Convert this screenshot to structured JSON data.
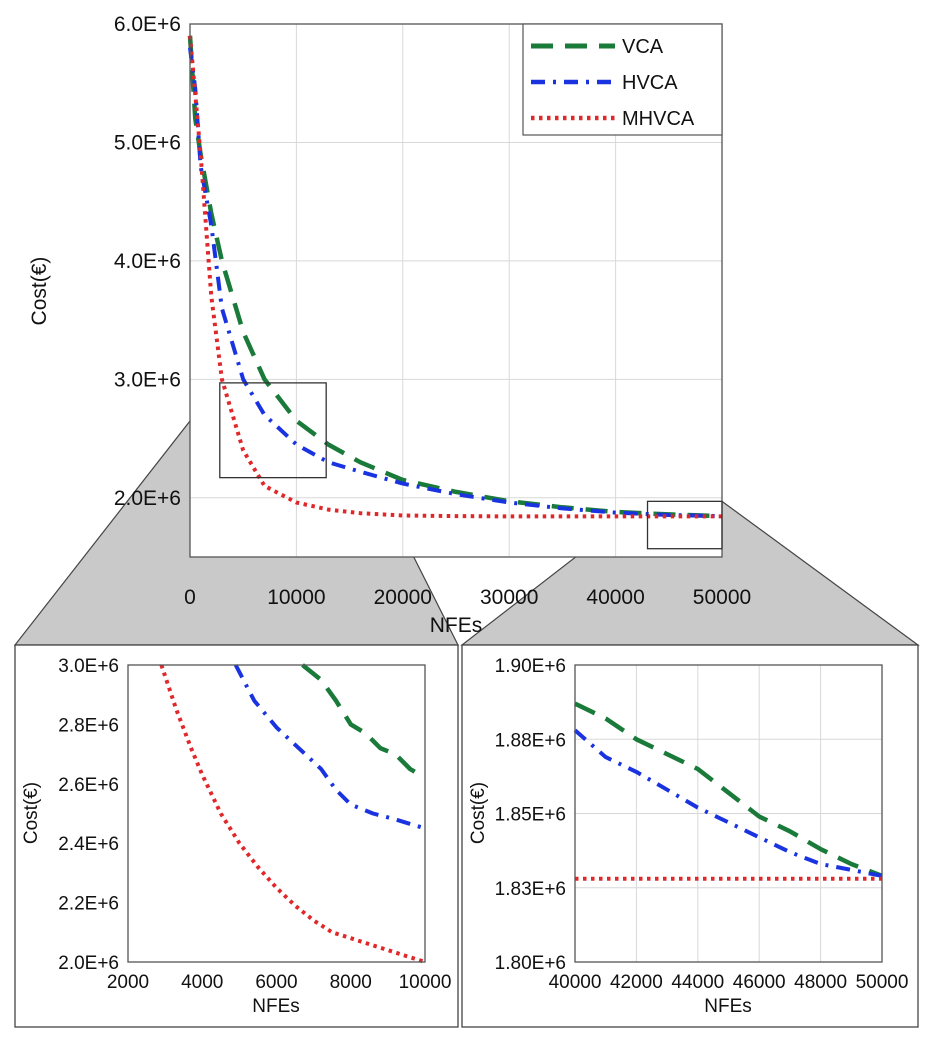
{
  "colors": {
    "vca": "#1a7a3a",
    "hvca": "#1a33e0",
    "mhvca": "#e0282a",
    "zoom_fill": "#c9c9c9",
    "grid": "#d8d8d8",
    "frame": "#555555"
  },
  "chart_data": [
    {
      "type": "line",
      "title": "",
      "xlabel": "NFEs",
      "ylabel": "Cost(€)",
      "xlim": [
        0,
        50000
      ],
      "ylim": [
        1500000,
        6000000
      ],
      "x_ticks": [
        0,
        10000,
        20000,
        30000,
        40000,
        50000
      ],
      "x_tick_labels": [
        "0",
        "10000",
        "20000",
        "30000",
        "40000",
        "50000"
      ],
      "y_ticks": [
        2000000,
        3000000,
        4000000,
        5000000,
        6000000
      ],
      "y_tick_labels": [
        "2.0E+6",
        "3.0E+6",
        "4.0E+6",
        "5.0E+6",
        "6.0E+6"
      ],
      "grid": true,
      "legend_position": "top-right",
      "series": [
        {
          "name": "VCA",
          "style": "long-dash",
          "x": [
            0,
            500,
            1000,
            2000,
            3000,
            5000,
            7000,
            10000,
            13000,
            16000,
            20000,
            25000,
            30000,
            35000,
            40000,
            45000,
            50000
          ],
          "values": [
            5900000,
            5200000,
            4900000,
            4400000,
            4000000,
            3400000,
            3000000,
            2650000,
            2450000,
            2300000,
            2150000,
            2050000,
            1970000,
            1920000,
            1880000,
            1860000,
            1845000
          ]
        },
        {
          "name": "HVCA",
          "style": "dash-dot",
          "x": [
            0,
            500,
            1000,
            2000,
            3000,
            5000,
            7000,
            10000,
            13000,
            16000,
            20000,
            25000,
            30000,
            35000,
            40000,
            45000,
            50000
          ],
          "values": [
            5800000,
            5450000,
            4800000,
            4300000,
            3600000,
            3000000,
            2700000,
            2450000,
            2300000,
            2220000,
            2120000,
            2030000,
            1960000,
            1910000,
            1875000,
            1855000,
            1845000
          ]
        },
        {
          "name": "MHVCA",
          "style": "dotted",
          "x": [
            0,
            500,
            1000,
            2000,
            3000,
            5000,
            7000,
            10000,
            13000,
            16000,
            20000,
            25000,
            30000,
            35000,
            40000,
            45000,
            50000
          ],
          "values": [
            5900000,
            5400000,
            4900000,
            3700000,
            3000000,
            2400000,
            2100000,
            1960000,
            1900000,
            1870000,
            1850000,
            1845000,
            1843000,
            1843000,
            1843000,
            1843000,
            1843000
          ]
        }
      ]
    },
    {
      "type": "line",
      "title": "",
      "xlabel": "NFEs",
      "ylabel": "Cost(€)",
      "xlim": [
        2000,
        10000
      ],
      "ylim": [
        2000000,
        3000000
      ],
      "x_ticks": [
        2000,
        4000,
        6000,
        8000,
        10000
      ],
      "x_tick_labels": [
        "2000",
        "4000",
        "6000",
        "8000",
        "10000"
      ],
      "y_ticks": [
        2000000,
        2200000,
        2400000,
        2600000,
        2800000,
        3000000
      ],
      "y_tick_labels": [
        "2.0E+6",
        "2.2E+6",
        "2.4E+6",
        "2.6E+6",
        "2.8E+6",
        "3.0E+6"
      ],
      "grid": false,
      "series": [
        {
          "name": "VCA",
          "style": "long-dash",
          "x": [
            6700,
            7200,
            7600,
            8000,
            8400,
            8800,
            9200,
            9600,
            10000
          ],
          "values": [
            3000000,
            2950000,
            2880000,
            2800000,
            2770000,
            2720000,
            2700000,
            2650000,
            2620000
          ]
        },
        {
          "name": "HVCA",
          "style": "dash-dot",
          "x": [
            4900,
            5400,
            6000,
            6600,
            7200,
            7600,
            8000,
            8600,
            9200,
            10000
          ],
          "values": [
            3000000,
            2880000,
            2790000,
            2720000,
            2650000,
            2580000,
            2530000,
            2500000,
            2480000,
            2450000
          ]
        },
        {
          "name": "MHVCA",
          "style": "dotted",
          "x": [
            2900,
            3300,
            3700,
            4000,
            4500,
            5000,
            5500,
            6000,
            6500,
            7000,
            7500,
            8000,
            8500,
            9000,
            9500,
            10000
          ],
          "values": [
            3000000,
            2850000,
            2720000,
            2630000,
            2500000,
            2400000,
            2320000,
            2250000,
            2190000,
            2140000,
            2100000,
            2080000,
            2060000,
            2040000,
            2020000,
            2000000
          ]
        }
      ]
    },
    {
      "type": "line",
      "title": "",
      "xlabel": "NFEs",
      "ylabel": "Cost(€)",
      "xlim": [
        40000,
        50000
      ],
      "ylim": [
        1800000,
        1900000
      ],
      "x_ticks": [
        40000,
        42000,
        44000,
        46000,
        48000,
        50000
      ],
      "x_tick_labels": [
        "40000",
        "42000",
        "44000",
        "46000",
        "48000",
        "50000"
      ],
      "y_ticks": [
        1800000,
        1825000,
        1850000,
        1875000,
        1900000
      ],
      "y_tick_labels": [
        "1.80E+6",
        "1.83E+6",
        "1.85E+6",
        "1.88E+6",
        "1.90E+6"
      ],
      "grid": true,
      "series": [
        {
          "name": "VCA",
          "style": "long-dash",
          "x": [
            40000,
            41000,
            42000,
            43000,
            44000,
            45000,
            46000,
            47000,
            48000,
            49000,
            50000
          ],
          "values": [
            1887000,
            1882000,
            1875000,
            1870000,
            1865000,
            1857000,
            1849000,
            1844000,
            1838000,
            1833000,
            1829000
          ]
        },
        {
          "name": "HVCA",
          "style": "dash-dot",
          "x": [
            40000,
            41000,
            42000,
            43000,
            44000,
            45000,
            46000,
            47000,
            48000,
            49000,
            50000
          ],
          "values": [
            1878000,
            1869000,
            1864000,
            1858000,
            1852000,
            1847000,
            1842000,
            1837000,
            1833000,
            1831000,
            1829000
          ]
        },
        {
          "name": "MHVCA",
          "style": "dotted",
          "x": [
            40000,
            50000
          ],
          "values": [
            1828000,
            1828000
          ]
        }
      ]
    }
  ]
}
